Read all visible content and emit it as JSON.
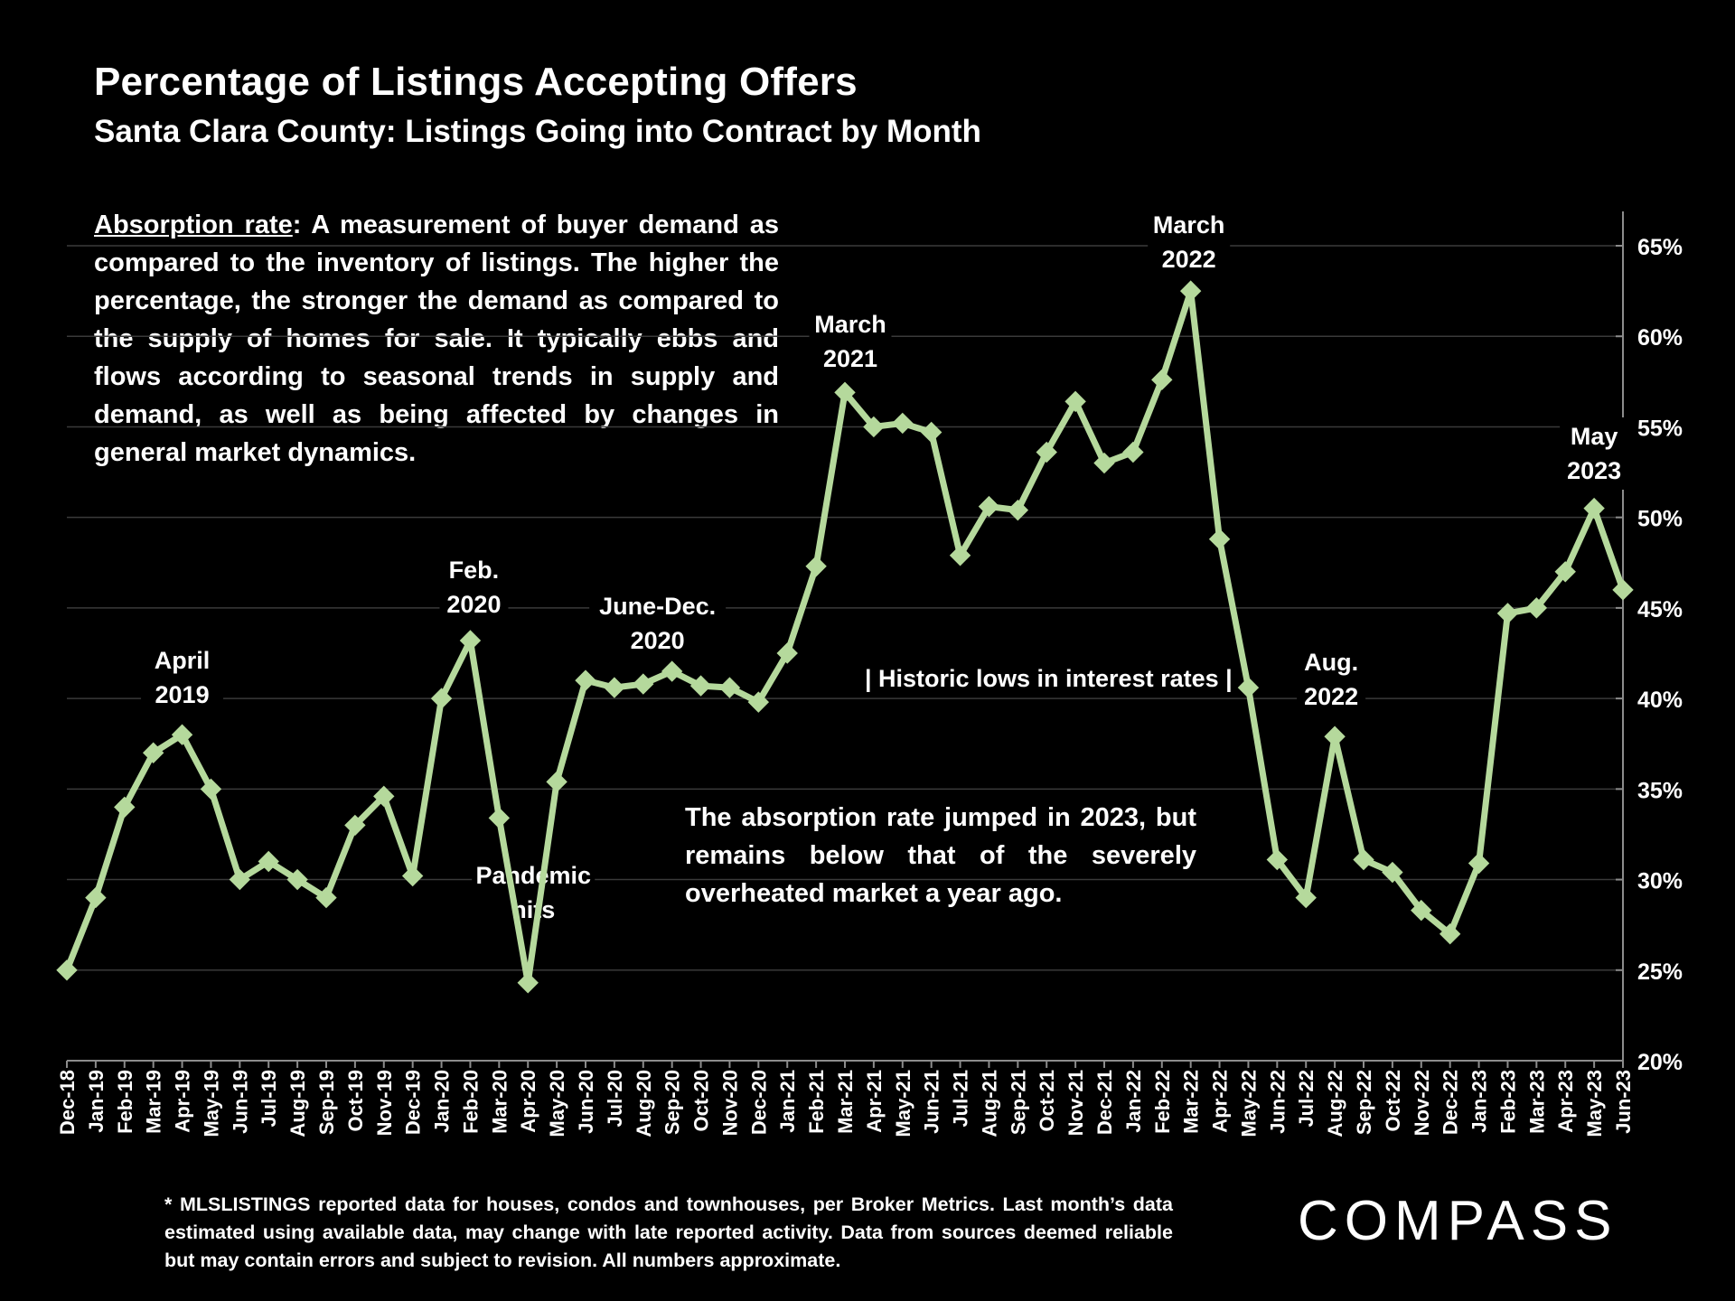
{
  "title": "Percentage of Listings Accepting Offers",
  "subtitle": "Santa Clara County: Listings Going into Contract by Month",
  "explanation": {
    "term": "Absorption rate",
    "text": ":  A measurement of buyer demand as compared to the inventory of listings. The higher the percentage, the stronger the demand as compared to the supply of homes for sale. It typically ebbs and flows according to seasonal trends in supply and demand, as well as being affected by changes in general market dynamics."
  },
  "note": "The absorption rate jumped in 2023, but remains below that of the severely overheated market a year ago.",
  "footnote": "* MLSLISTINGS reported data for houses, condos and townhouses, per Broker Metrics. Last month’s data estimated using available data, may change with late reported activity. Data from sources deemed reliable but may contain errors and subject to revision. All numbers approximate.",
  "logo": "COMPASS",
  "colors": {
    "background": "#000000",
    "line": "#b5d99c",
    "grid": "#3a3a3a",
    "text": "#ffffff"
  },
  "chart_data": {
    "type": "line",
    "categories": [
      "Dec-18",
      "Jan-19",
      "Feb-19",
      "Mar-19",
      "Apr-19",
      "May-19",
      "Jun-19",
      "Jul-19",
      "Aug-19",
      "Sep-19",
      "Oct-19",
      "Nov-19",
      "Dec-19",
      "Jan-20",
      "Feb-20",
      "Mar-20",
      "Apr-20",
      "May-20",
      "Jun-20",
      "Jul-20",
      "Aug-20",
      "Sep-20",
      "Oct-20",
      "Nov-20",
      "Dec-20",
      "Jan-21",
      "Feb-21",
      "Mar-21",
      "Apr-21",
      "May-21",
      "Jun-21",
      "Jul-21",
      "Aug-21",
      "Sep-21",
      "Oct-21",
      "Nov-21",
      "Dec-21",
      "Jan-22",
      "Feb-22",
      "Mar-22",
      "Apr-22",
      "May-22",
      "Jun-22",
      "Jul-22",
      "Aug-22",
      "Sep-22",
      "Oct-22",
      "Nov-22",
      "Dec-22",
      "Jan-23",
      "Feb-23",
      "Mar-23",
      "Apr-23",
      "May-23",
      "Jun-23"
    ],
    "values": [
      25.0,
      29.0,
      34.0,
      37.0,
      38.0,
      35.0,
      30.0,
      31.0,
      30.0,
      29.0,
      33.0,
      34.6,
      30.2,
      40.0,
      43.2,
      33.4,
      24.3,
      35.4,
      41.0,
      40.6,
      40.8,
      41.5,
      40.7,
      40.6,
      39.8,
      42.5,
      47.3,
      56.9,
      55.0,
      55.2,
      54.7,
      47.9,
      50.6,
      50.4,
      53.6,
      56.4,
      53.0,
      53.6,
      57.6,
      62.5,
      48.8,
      40.6,
      31.1,
      29.0,
      37.9,
      31.1,
      30.4,
      28.3,
      27.0,
      30.9,
      44.7,
      45.0,
      47.0,
      50.5,
      46.0
    ],
    "ylim": [
      20,
      65
    ],
    "yticks": [
      "20%",
      "25%",
      "30%",
      "35%",
      "40%",
      "45%",
      "50%",
      "55%",
      "60%",
      "65%"
    ],
    "ytick_values": [
      20,
      25,
      30,
      35,
      40,
      45,
      50,
      55,
      60,
      65
    ],
    "grid": true,
    "y_axis_side": "right",
    "annotations": [
      {
        "text_lines": [
          "April",
          "2019"
        ],
        "category": "Apr-19"
      },
      {
        "text_lines": [
          "Feb.",
          "2020"
        ],
        "category": "Feb-20"
      },
      {
        "text_lines": [
          "June-Dec.",
          "2020"
        ],
        "category": "Sep-20"
      },
      {
        "text_lines": [
          "Pandemic",
          "hits"
        ],
        "category": "Apr-20"
      },
      {
        "text_lines": [
          "March",
          "2021"
        ],
        "category": "Mar-21"
      },
      {
        "text_lines": [
          "March",
          "2022"
        ],
        "category": "Mar-22"
      },
      {
        "text_lines": [
          "| Historic lows in interest rates |"
        ],
        "category": "Sep-21"
      },
      {
        "text_lines": [
          "Aug.",
          "2022"
        ],
        "category": "Aug-22"
      },
      {
        "text_lines": [
          "May",
          "2023"
        ],
        "category": "May-23"
      }
    ]
  }
}
